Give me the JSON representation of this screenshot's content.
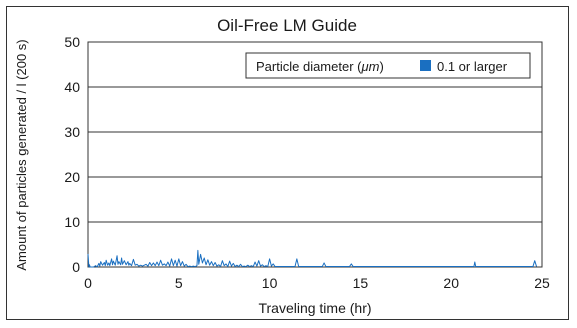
{
  "chart_data": {
    "type": "line",
    "title": "Oil-Free LM Guide",
    "xlabel": "Traveling time (hr)",
    "ylabel": "Amount of particles generated / l (200 s)",
    "xlim": [
      0,
      25
    ],
    "ylim": [
      0,
      50
    ],
    "xticks": [
      0,
      5,
      10,
      15,
      20,
      25
    ],
    "yticks": [
      0,
      10,
      20,
      30,
      40,
      50
    ],
    "grid": "horizontal",
    "legend": {
      "placement": "top-right",
      "title_prefix": "Particle diameter (",
      "title_unit": "μm",
      "title_suffix": ")"
    },
    "series": [
      {
        "name": "0.1 or larger",
        "color": "#1a6fc1",
        "x": [
          0.0,
          0.05,
          0.08,
          0.12,
          0.3,
          0.42,
          0.5,
          0.6,
          0.65,
          0.7,
          0.8,
          0.9,
          0.95,
          1.0,
          1.08,
          1.15,
          1.2,
          1.3,
          1.35,
          1.4,
          1.5,
          1.6,
          1.65,
          1.7,
          1.8,
          1.85,
          1.9,
          2.0,
          2.1,
          2.2,
          2.25,
          2.3,
          2.4,
          2.5,
          2.6,
          2.7,
          2.8,
          2.9,
          3.0,
          3.2,
          3.3,
          3.4,
          3.5,
          3.6,
          3.7,
          3.8,
          3.9,
          4.0,
          4.1,
          4.2,
          4.3,
          4.4,
          4.5,
          4.6,
          4.7,
          4.8,
          4.9,
          5.0,
          5.1,
          5.2,
          5.3,
          5.4,
          5.5,
          5.6,
          5.7,
          5.8,
          5.9,
          6.0,
          6.05,
          6.1,
          6.2,
          6.3,
          6.4,
          6.5,
          6.6,
          6.7,
          6.8,
          6.9,
          7.0,
          7.1,
          7.2,
          7.3,
          7.4,
          7.5,
          7.6,
          7.7,
          7.8,
          7.9,
          8.0,
          8.1,
          8.2,
          8.3,
          8.4,
          8.5,
          8.6,
          8.7,
          8.8,
          8.9,
          9.0,
          9.1,
          9.2,
          9.3,
          9.4,
          9.5,
          9.6,
          9.7,
          9.8,
          9.9,
          10.0,
          10.1,
          10.2,
          10.3,
          11.4,
          11.5,
          11.6,
          12.9,
          13.0,
          13.1,
          14.4,
          14.5,
          14.6,
          21.25,
          21.3,
          21.35,
          24.5,
          24.6,
          24.7
        ],
        "y": [
          2.9,
          0.0,
          0.5,
          0.0,
          0.0,
          0.3,
          0.0,
          0.8,
          0.2,
          1.2,
          0.4,
          1.0,
          0.3,
          1.5,
          0.4,
          0.9,
          0.3,
          1.8,
          0.5,
          1.3,
          0.4,
          2.5,
          0.6,
          1.2,
          0.5,
          2.0,
          0.6,
          1.4,
          0.5,
          1.2,
          0.4,
          0.8,
          0.3,
          1.7,
          0.4,
          0.6,
          0.2,
          0.4,
          0.2,
          0.6,
          0.2,
          1.0,
          0.3,
          0.9,
          0.3,
          1.1,
          0.3,
          1.5,
          0.4,
          0.7,
          0.3,
          1.1,
          0.2,
          1.8,
          0.3,
          1.5,
          0.2,
          1.8,
          0.3,
          1.2,
          0.2,
          0.6,
          0.1,
          0.2,
          0.1,
          0.2,
          0.1,
          0.3,
          3.7,
          0.6,
          2.8,
          0.9,
          2.0,
          0.5,
          1.6,
          0.4,
          1.2,
          0.3,
          1.0,
          0.2,
          0.5,
          0.1,
          1.4,
          0.3,
          0.7,
          0.1,
          1.3,
          0.2,
          0.8,
          0.1,
          0.4,
          0.1,
          0.6,
          0.1,
          0.2,
          0.1,
          0.4,
          0.1,
          0.3,
          0.1,
          1.1,
          0.2,
          1.4,
          0.2,
          0.5,
          0.1,
          0.3,
          0.1,
          1.8,
          0.2,
          0.7,
          0.1,
          0.1,
          1.8,
          0.1,
          0.1,
          0.9,
          0.1,
          0.1,
          0.7,
          0.1,
          0.1,
          1.1,
          0.1,
          0.1,
          1.4,
          0.1
        ]
      }
    ]
  }
}
